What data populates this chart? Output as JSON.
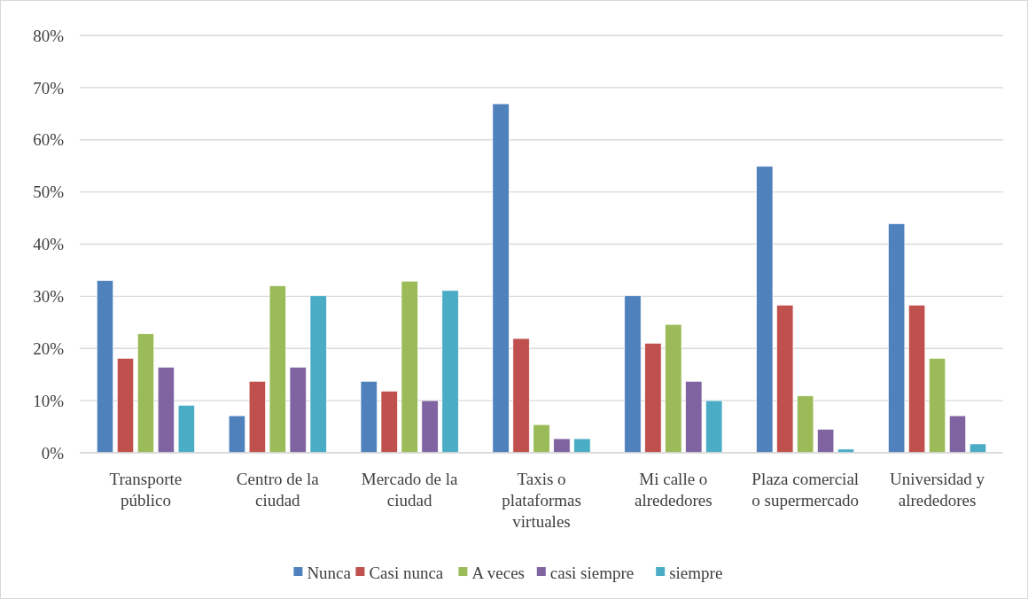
{
  "chart_data": {
    "type": "bar",
    "categories": [
      "Transporte público",
      "Centro de la ciudad",
      "Mercado de la ciudad",
      "Taxis o plataformas virtuales",
      "Mi calle o alrededores",
      "Plaza comercial o supermercado",
      "Universidad y alrededores"
    ],
    "series": [
      {
        "name": "Nunca",
        "color": "#4f81bd",
        "values": [
          33,
          7.1,
          13.7,
          66.9,
          30.1,
          54.9,
          43.9
        ]
      },
      {
        "name": "Casi nunca",
        "color": "#c0504d",
        "values": [
          18.1,
          13.7,
          11.8,
          21.9,
          21,
          28.3,
          28.3
        ]
      },
      {
        "name": "A veces",
        "color": "#9bbb59",
        "values": [
          22.8,
          32,
          32.9,
          5.4,
          24.6,
          10.9,
          18.1
        ]
      },
      {
        "name": "casi siempre",
        "color": "#8064a2",
        "values": [
          16.4,
          16.4,
          10,
          2.7,
          13.7,
          4.5,
          7.1
        ]
      },
      {
        "name": "siempre",
        "color": "#4bacc6",
        "values": [
          9.1,
          30.1,
          31.1,
          2.7,
          10,
          0.7,
          1.7
        ]
      }
    ],
    "ylim": [
      0,
      80
    ],
    "yticks": [
      {
        "value": 0,
        "label": "0%"
      },
      {
        "value": 10,
        "label": "10%"
      },
      {
        "value": 20,
        "label": "20%"
      },
      {
        "value": 30,
        "label": "30%"
      },
      {
        "value": 40,
        "label": "40%"
      },
      {
        "value": 50,
        "label": "50%"
      },
      {
        "value": 60,
        "label": "60%"
      },
      {
        "value": 70,
        "label": "70%"
      },
      {
        "value": 80,
        "label": "80%"
      }
    ],
    "grid": "y",
    "legend": "bottom"
  }
}
